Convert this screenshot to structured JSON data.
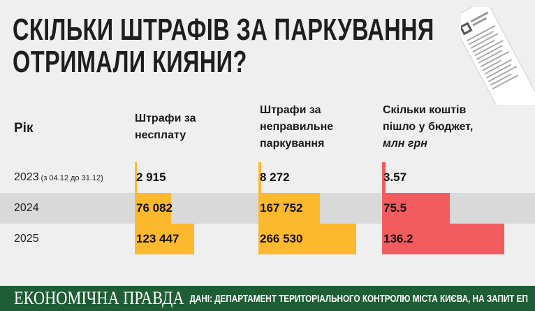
{
  "title_line1": "СКІЛЬКИ ШТРАФІВ ЗА ПАРКУВАННЯ",
  "title_line2": "ОТРИМАЛИ КИЯНИ?",
  "colors": {
    "background": "#efefef",
    "row_highlight": "#d9d9d9",
    "bar_yellow": "#fdb92d",
    "bar_red": "#f25c5f",
    "footer": "#1f5d35"
  },
  "chart_data": {
    "type": "table",
    "columns": {
      "year": "Рік",
      "unpaid_line1": "Штрафи за",
      "unpaid_line2": "несплату",
      "improper_line1": "Штрафи за",
      "improper_line2": "неправильне",
      "improper_line3": "паркування",
      "budget_line1": "Скільки коштів",
      "budget_line2": "пішло у бюджет,",
      "budget_unit": "млн грн"
    },
    "rows": [
      {
        "year": "2023",
        "note": "(з 04.12 до 31.12)",
        "unpaid": 2915,
        "improper": 8272,
        "budget": 3.57,
        "unpaid_label": "2 915",
        "improper_label": "8 272",
        "budget_label": "3.57"
      },
      {
        "year": "2024",
        "note": "",
        "unpaid": 76082,
        "improper": 167752,
        "budget": 75.5,
        "unpaid_label": "76 082",
        "improper_label": "167 752",
        "budget_label": "75.5"
      },
      {
        "year": "2025",
        "note": "",
        "unpaid": 123447,
        "improper": 266530,
        "budget": 136.2,
        "unpaid_label": "123 447",
        "improper_label": "266 530",
        "budget_label": "136.2"
      }
    ],
    "highlighted_row": "2024"
  },
  "footer": {
    "logo": "ЕКОНОМІЧНА ПРАВДА",
    "source": "ДАНІ: ДЕПАРТАМЕНТ ТЕРИТОРІАЛЬНОГО КОНТРОЛЮ МІСТА КИЄВА, НА ЗАПИТ ЕП"
  }
}
